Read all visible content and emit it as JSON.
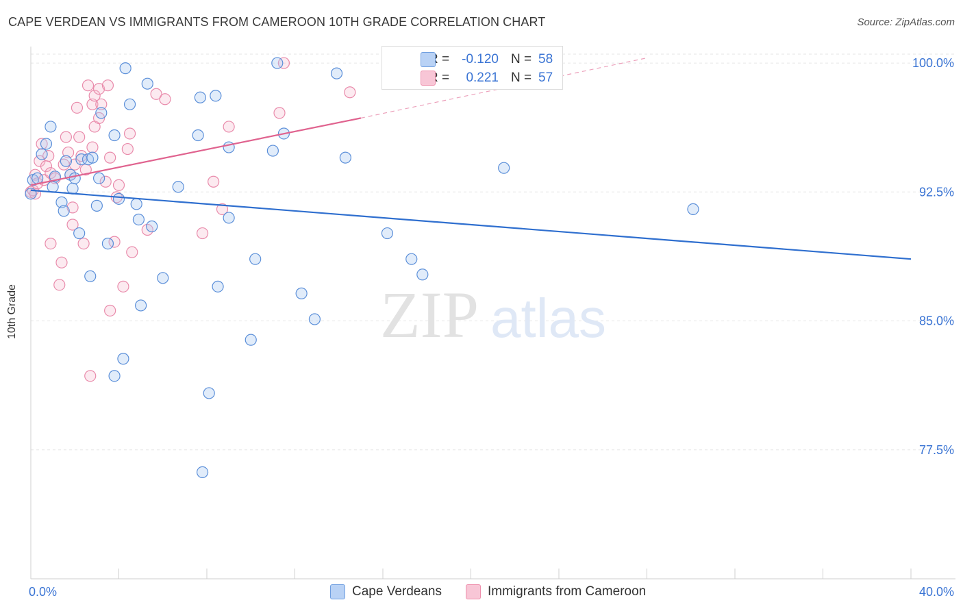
{
  "title": "CAPE VERDEAN VS IMMIGRANTS FROM CAMEROON 10TH GRADE CORRELATION CHART",
  "source": "Source: ZipAtlas.com",
  "watermark": {
    "zip": "ZIP",
    "atlas": "atlas"
  },
  "legend": {
    "r_label": "R =",
    "n_label": "N =",
    "rows": [
      {
        "r": "-0.120",
        "n": "58",
        "fill": "#b9d2f5",
        "stroke": "#6f9fe0"
      },
      {
        "r": "0.221",
        "n": "57",
        "fill": "#f8c6d6",
        "stroke": "#ee8fac"
      }
    ]
  },
  "bottom_legend": [
    {
      "label": "Cape Verdeans",
      "fill": "#b9d2f5",
      "stroke": "#6f9fe0"
    },
    {
      "label": "Immigrants from Cameroon",
      "fill": "#f8c6d6",
      "stroke": "#ee8fac"
    }
  ],
  "colors": {
    "blue_point_fill": "rgba(170,200,240,0.35)",
    "blue_point_stroke": "#5b8fd9",
    "pink_point_fill": "rgba(245,185,205,0.3)",
    "pink_point_stroke": "#e98bab",
    "blue_line": "#2f6fcf",
    "pink_line": "#e0638f",
    "axis_text": "#3a74d4",
    "grid": "#e6e6e6"
  },
  "chart_data": {
    "type": "scatter",
    "title": "CAPE VERDEAN VS IMMIGRANTS FROM CAMEROON 10TH GRADE CORRELATION CHART",
    "xlabel": "",
    "ylabel": "10th Grade",
    "xlim": [
      0,
      40
    ],
    "ylim": [
      70.0,
      100.8
    ],
    "x_tick_labels": [
      "0.0%",
      "40.0%"
    ],
    "y_ticks": [
      77.5,
      85.0,
      92.5,
      100.0
    ],
    "y_tick_labels": [
      "77.5%",
      "85.0%",
      "92.5%",
      "100.0%"
    ],
    "grid": true,
    "legend_position": "top-center",
    "series": [
      {
        "name": "Cape Verdeans",
        "points": [
          [
            0.1,
            93.2
          ],
          [
            0.3,
            93.3
          ],
          [
            0.5,
            94.7
          ],
          [
            0.7,
            95.3
          ],
          [
            0.9,
            96.3
          ],
          [
            1.0,
            92.8
          ],
          [
            1.1,
            93.4
          ],
          [
            1.4,
            91.9
          ],
          [
            1.5,
            91.4
          ],
          [
            1.6,
            94.3
          ],
          [
            1.8,
            93.5
          ],
          [
            1.9,
            92.7
          ],
          [
            2.0,
            93.3
          ],
          [
            2.2,
            90.1
          ],
          [
            2.3,
            94.4
          ],
          [
            2.6,
            94.4
          ],
          [
            2.7,
            87.6
          ],
          [
            2.8,
            94.5
          ],
          [
            3.0,
            91.7
          ],
          [
            3.1,
            93.3
          ],
          [
            3.2,
            97.1
          ],
          [
            3.5,
            89.5
          ],
          [
            3.8,
            95.8
          ],
          [
            3.8,
            81.8
          ],
          [
            4.0,
            92.1
          ],
          [
            4.2,
            82.8
          ],
          [
            4.3,
            99.7
          ],
          [
            4.5,
            97.6
          ],
          [
            4.8,
            91.8
          ],
          [
            4.9,
            90.9
          ],
          [
            5.0,
            85.9
          ],
          [
            5.3,
            98.8
          ],
          [
            5.5,
            90.5
          ],
          [
            6.0,
            87.5
          ],
          [
            6.7,
            92.8
          ],
          [
            7.6,
            95.8
          ],
          [
            7.7,
            98.0
          ],
          [
            7.8,
            76.2
          ],
          [
            8.1,
            80.8
          ],
          [
            8.4,
            98.1
          ],
          [
            8.5,
            87.0
          ],
          [
            9.0,
            91.0
          ],
          [
            9.0,
            95.1
          ],
          [
            10.0,
            83.9
          ],
          [
            10.2,
            88.6
          ],
          [
            11.0,
            94.9
          ],
          [
            11.5,
            95.9
          ],
          [
            11.2,
            100.0
          ],
          [
            12.3,
            86.6
          ],
          [
            12.9,
            85.1
          ],
          [
            13.9,
            99.4
          ],
          [
            14.3,
            94.5
          ],
          [
            16.2,
            90.1
          ],
          [
            17.3,
            88.6
          ],
          [
            17.8,
            87.7
          ],
          [
            21.5,
            93.9
          ],
          [
            30.1,
            91.5
          ],
          [
            0.0,
            92.4
          ]
        ]
      },
      {
        "name": "Immigrants from Cameroon",
        "points": [
          [
            0.0,
            92.5
          ],
          [
            0.1,
            92.6
          ],
          [
            0.2,
            93.5
          ],
          [
            0.3,
            93.0
          ],
          [
            0.4,
            94.3
          ],
          [
            0.5,
            95.3
          ],
          [
            0.6,
            93.2
          ],
          [
            0.7,
            94.0
          ],
          [
            0.8,
            94.6
          ],
          [
            0.9,
            89.5
          ],
          [
            0.9,
            93.6
          ],
          [
            1.1,
            93.3
          ],
          [
            1.3,
            87.1
          ],
          [
            1.4,
            88.4
          ],
          [
            1.5,
            94.1
          ],
          [
            1.6,
            95.7
          ],
          [
            1.7,
            94.8
          ],
          [
            1.8,
            93.5
          ],
          [
            1.9,
            90.6
          ],
          [
            1.9,
            91.6
          ],
          [
            2.0,
            94.1
          ],
          [
            2.1,
            97.4
          ],
          [
            2.2,
            95.7
          ],
          [
            2.3,
            94.6
          ],
          [
            2.4,
            89.5
          ],
          [
            2.5,
            93.8
          ],
          [
            2.6,
            98.7
          ],
          [
            2.7,
            81.8
          ],
          [
            2.8,
            95.1
          ],
          [
            2.8,
            97.6
          ],
          [
            2.9,
            98.1
          ],
          [
            2.9,
            96.3
          ],
          [
            3.1,
            98.5
          ],
          [
            3.1,
            96.8
          ],
          [
            3.2,
            97.6
          ],
          [
            3.4,
            93.1
          ],
          [
            3.5,
            98.7
          ],
          [
            3.6,
            94.5
          ],
          [
            3.6,
            85.6
          ],
          [
            3.8,
            89.6
          ],
          [
            3.9,
            92.2
          ],
          [
            4.0,
            92.9
          ],
          [
            4.2,
            87.0
          ],
          [
            4.4,
            95.0
          ],
          [
            4.5,
            95.9
          ],
          [
            4.6,
            89.0
          ],
          [
            5.3,
            90.3
          ],
          [
            5.7,
            98.2
          ],
          [
            6.1,
            97.9
          ],
          [
            7.8,
            90.1
          ],
          [
            8.3,
            93.1
          ],
          [
            8.7,
            91.5
          ],
          [
            9.0,
            96.3
          ],
          [
            11.3,
            97.1
          ],
          [
            11.5,
            100.0
          ],
          [
            14.5,
            98.3
          ],
          [
            0.2,
            92.4
          ]
        ]
      }
    ],
    "trend_lines": [
      {
        "name": "Cape Verdeans",
        "x": [
          0,
          40
        ],
        "y": [
          92.6,
          88.6
        ]
      },
      {
        "name": "Immigrants from Cameroon",
        "x": [
          0,
          15
        ],
        "y": [
          92.9,
          96.8
        ],
        "dashed_extension": [
          15,
          28
        ],
        "dashed_end_y": 100.3
      }
    ]
  }
}
